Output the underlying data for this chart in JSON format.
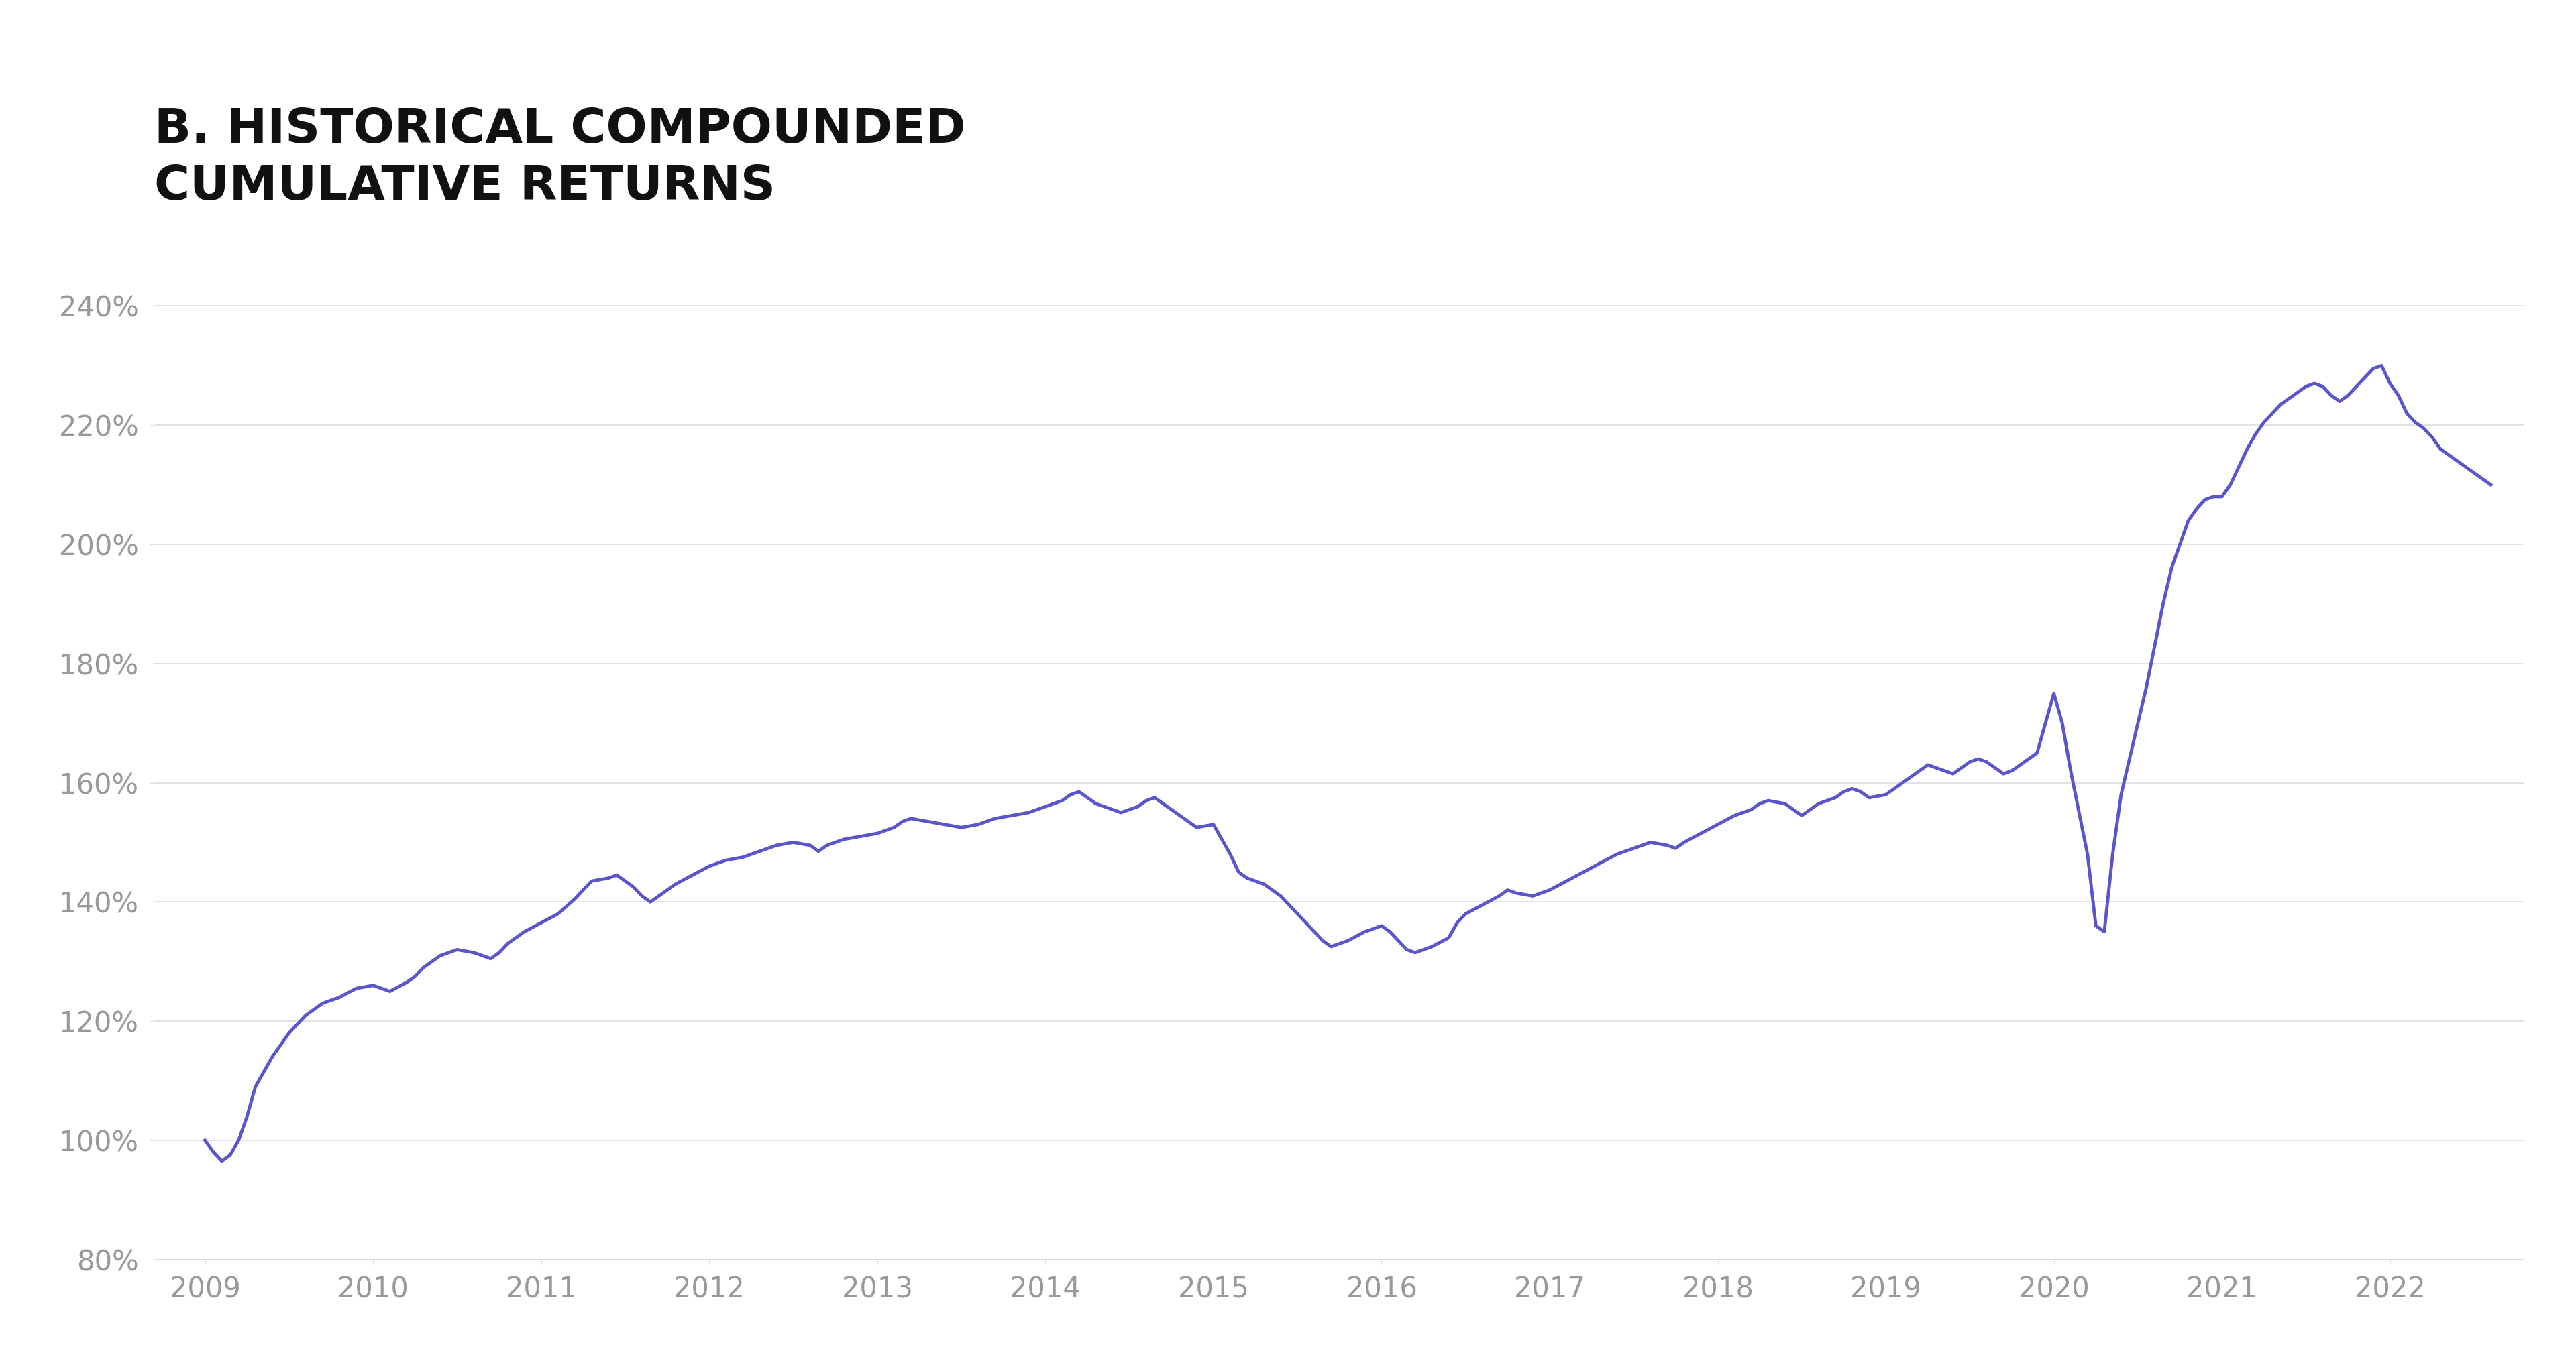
{
  "title": "B. HISTORICAL COMPOUNDED\nCUMULATIVE RETURNS",
  "line_color": "#5B55CC",
  "line_width": 3.5,
  "background_color": "#FFFFFF",
  "grid_color": "#DDDDDD",
  "tick_label_color": "#999999",
  "title_color": "#111111",
  "ylim": [
    80,
    250
  ],
  "yticks": [
    80,
    100,
    120,
    140,
    160,
    180,
    200,
    220,
    240
  ],
  "xticks": [
    2009,
    2010,
    2011,
    2012,
    2013,
    2014,
    2015,
    2016,
    2017,
    2018,
    2019,
    2020,
    2021,
    2022
  ],
  "title_fontsize": 52,
  "tick_fontsize": 30,
  "series_x": [
    2009.0,
    2009.05,
    2009.1,
    2009.15,
    2009.2,
    2009.25,
    2009.3,
    2009.4,
    2009.5,
    2009.6,
    2009.7,
    2009.8,
    2009.9,
    2010.0,
    2010.1,
    2010.2,
    2010.25,
    2010.3,
    2010.4,
    2010.5,
    2010.6,
    2010.7,
    2010.75,
    2010.8,
    2010.9,
    2011.0,
    2011.1,
    2011.2,
    2011.25,
    2011.3,
    2011.4,
    2011.45,
    2011.5,
    2011.55,
    2011.6,
    2011.65,
    2011.7,
    2011.8,
    2011.9,
    2012.0,
    2012.1,
    2012.2,
    2012.3,
    2012.4,
    2012.5,
    2012.6,
    2012.65,
    2012.7,
    2012.8,
    2012.9,
    2013.0,
    2013.1,
    2013.15,
    2013.2,
    2013.3,
    2013.4,
    2013.5,
    2013.6,
    2013.65,
    2013.7,
    2013.8,
    2013.9,
    2014.0,
    2014.1,
    2014.15,
    2014.2,
    2014.25,
    2014.3,
    2014.4,
    2014.45,
    2014.5,
    2014.55,
    2014.6,
    2014.65,
    2014.7,
    2014.75,
    2014.8,
    2014.85,
    2014.9,
    2015.0,
    2015.1,
    2015.15,
    2015.2,
    2015.3,
    2015.4,
    2015.5,
    2015.6,
    2015.65,
    2015.7,
    2015.8,
    2015.9,
    2016.0,
    2016.05,
    2016.1,
    2016.15,
    2016.2,
    2016.3,
    2016.4,
    2016.45,
    2016.5,
    2016.6,
    2016.7,
    2016.75,
    2016.8,
    2016.9,
    2017.0,
    2017.1,
    2017.2,
    2017.3,
    2017.4,
    2017.5,
    2017.55,
    2017.6,
    2017.7,
    2017.75,
    2017.8,
    2017.9,
    2018.0,
    2018.1,
    2018.2,
    2018.25,
    2018.3,
    2018.4,
    2018.45,
    2018.5,
    2018.55,
    2018.6,
    2018.7,
    2018.75,
    2018.8,
    2018.85,
    2018.9,
    2019.0,
    2019.1,
    2019.2,
    2019.25,
    2019.3,
    2019.4,
    2019.45,
    2019.5,
    2019.55,
    2019.6,
    2019.65,
    2019.7,
    2019.75,
    2019.8,
    2019.85,
    2019.9,
    2020.0,
    2020.05,
    2020.1,
    2020.15,
    2020.2,
    2020.25,
    2020.3,
    2020.35,
    2020.4,
    2020.45,
    2020.5,
    2020.55,
    2020.6,
    2020.65,
    2020.7,
    2020.75,
    2020.8,
    2020.85,
    2020.9,
    2020.95,
    2021.0,
    2021.05,
    2021.1,
    2021.15,
    2021.2,
    2021.25,
    2021.3,
    2021.35,
    2021.4,
    2021.45,
    2021.5,
    2021.55,
    2021.6,
    2021.65,
    2021.7,
    2021.75,
    2021.8,
    2021.85,
    2021.9,
    2021.95,
    2022.0,
    2022.05,
    2022.1,
    2022.15,
    2022.2,
    2022.25,
    2022.3,
    2022.35,
    2022.4,
    2022.45,
    2022.5,
    2022.55,
    2022.6
  ],
  "series_y": [
    100.0,
    98.0,
    96.5,
    97.5,
    100.0,
    104.0,
    109.0,
    114.0,
    118.0,
    121.0,
    123.0,
    124.0,
    125.5,
    126.0,
    125.0,
    126.5,
    127.5,
    129.0,
    131.0,
    132.0,
    131.5,
    130.5,
    131.5,
    133.0,
    135.0,
    136.5,
    138.0,
    140.5,
    142.0,
    143.5,
    144.0,
    144.5,
    143.5,
    142.5,
    141.0,
    140.0,
    141.0,
    143.0,
    144.5,
    146.0,
    147.0,
    147.5,
    148.5,
    149.5,
    150.0,
    149.5,
    148.5,
    149.5,
    150.5,
    151.0,
    151.5,
    152.5,
    153.5,
    154.0,
    153.5,
    153.0,
    152.5,
    153.0,
    153.5,
    154.0,
    154.5,
    155.0,
    156.0,
    157.0,
    158.0,
    158.5,
    157.5,
    156.5,
    155.5,
    155.0,
    155.5,
    156.0,
    157.0,
    157.5,
    156.5,
    155.5,
    154.5,
    153.5,
    152.5,
    153.0,
    148.0,
    145.0,
    144.0,
    143.0,
    141.0,
    138.0,
    135.0,
    133.5,
    132.5,
    133.5,
    135.0,
    136.0,
    135.0,
    133.5,
    132.0,
    131.5,
    132.5,
    134.0,
    136.5,
    138.0,
    139.5,
    141.0,
    142.0,
    141.5,
    141.0,
    142.0,
    143.5,
    145.0,
    146.5,
    148.0,
    149.0,
    149.5,
    150.0,
    149.5,
    149.0,
    150.0,
    151.5,
    153.0,
    154.5,
    155.5,
    156.5,
    157.0,
    156.5,
    155.5,
    154.5,
    155.5,
    156.5,
    157.5,
    158.5,
    159.0,
    158.5,
    157.5,
    158.0,
    160.0,
    162.0,
    163.0,
    162.5,
    161.5,
    162.5,
    163.5,
    164.0,
    163.5,
    162.5,
    161.5,
    162.0,
    163.0,
    164.0,
    165.0,
    175.0,
    170.0,
    162.0,
    155.0,
    148.0,
    136.0,
    135.0,
    148.0,
    158.0,
    164.0,
    170.0,
    176.0,
    183.0,
    190.0,
    196.0,
    200.0,
    204.0,
    206.0,
    207.5,
    208.0,
    208.0,
    210.0,
    213.0,
    216.0,
    218.5,
    220.5,
    222.0,
    223.5,
    224.5,
    225.5,
    226.5,
    227.0,
    226.5,
    225.0,
    224.0,
    225.0,
    226.5,
    228.0,
    229.5,
    230.0,
    227.0,
    225.0,
    222.0,
    220.5,
    219.5,
    218.0,
    216.0,
    215.0,
    214.0,
    213.0,
    212.0,
    211.0,
    210.0
  ]
}
